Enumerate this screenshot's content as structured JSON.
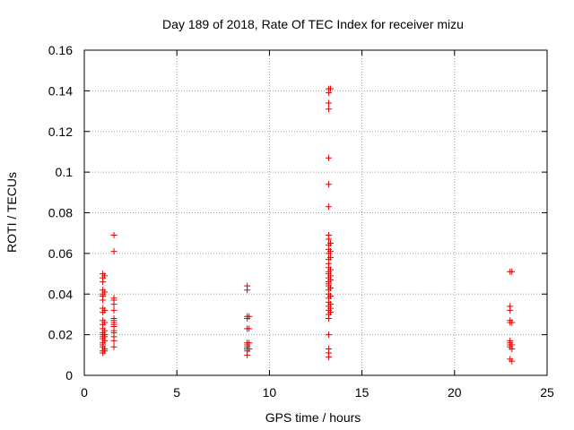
{
  "chart_data": {
    "type": "scatter",
    "title": "Day 189 of 2018, Rate Of TEC Index for receiver mizu",
    "xlabel": "GPS time / hours",
    "ylabel": "ROTI / TECUs",
    "xlim": [
      0,
      25
    ],
    "ylim": [
      0,
      0.16
    ],
    "xticks": [
      0,
      5,
      10,
      15,
      20,
      25
    ],
    "xtick_labels": [
      "0",
      "5",
      "10",
      "15",
      "20",
      "25"
    ],
    "yticks": [
      0,
      0.02,
      0.04,
      0.06,
      0.08,
      0.1,
      0.12,
      0.14,
      0.16
    ],
    "ytick_labels": [
      "0",
      "0.02",
      "0.04",
      "0.06",
      "0.08",
      "0.1",
      "0.12",
      "0.14",
      "0.16"
    ],
    "grid": true,
    "marker": "plus",
    "color": "#e00000",
    "points": [
      [
        1.0,
        0.05
      ],
      [
        1.0,
        0.048
      ],
      [
        1.0,
        0.046
      ],
      [
        1.0,
        0.042
      ],
      [
        1.0,
        0.04
      ],
      [
        1.0,
        0.039
      ],
      [
        1.0,
        0.037
      ],
      [
        1.0,
        0.033
      ],
      [
        1.0,
        0.031
      ],
      [
        1.0,
        0.027
      ],
      [
        1.0,
        0.025
      ],
      [
        1.0,
        0.023
      ],
      [
        1.0,
        0.021
      ],
      [
        1.0,
        0.02
      ],
      [
        1.0,
        0.019
      ],
      [
        1.0,
        0.018
      ],
      [
        1.0,
        0.016
      ],
      [
        1.0,
        0.015
      ],
      [
        1.0,
        0.014
      ],
      [
        1.0,
        0.012
      ],
      [
        1.0,
        0.011
      ],
      [
        1.1,
        0.049
      ],
      [
        1.1,
        0.041
      ],
      [
        1.1,
        0.032
      ],
      [
        1.1,
        0.026
      ],
      [
        1.1,
        0.022
      ],
      [
        1.1,
        0.02
      ],
      [
        1.1,
        0.019
      ],
      [
        1.1,
        0.017
      ],
      [
        1.1,
        0.013
      ],
      [
        1.1,
        0.012
      ],
      [
        1.6,
        0.069
      ],
      [
        1.6,
        0.061
      ],
      [
        1.6,
        0.038
      ],
      [
        1.6,
        0.037
      ],
      [
        1.6,
        0.035
      ],
      [
        1.6,
        0.032
      ],
      [
        1.6,
        0.028
      ],
      [
        1.6,
        0.027
      ],
      [
        1.6,
        0.026
      ],
      [
        1.6,
        0.025
      ],
      [
        1.6,
        0.024
      ],
      [
        1.6,
        0.022
      ],
      [
        1.6,
        0.021
      ],
      [
        1.6,
        0.019
      ],
      [
        1.6,
        0.017
      ],
      [
        1.6,
        0.014
      ],
      [
        8.8,
        0.044
      ],
      [
        8.8,
        0.042
      ],
      [
        8.8,
        0.029
      ],
      [
        8.8,
        0.028
      ],
      [
        8.8,
        0.023
      ],
      [
        8.8,
        0.016
      ],
      [
        8.8,
        0.015
      ],
      [
        8.8,
        0.014
      ],
      [
        8.8,
        0.013
      ],
      [
        8.8,
        0.012
      ],
      [
        8.8,
        0.01
      ],
      [
        8.9,
        0.029
      ],
      [
        8.9,
        0.023
      ],
      [
        8.9,
        0.016
      ],
      [
        8.9,
        0.013
      ],
      [
        13.2,
        0.141
      ],
      [
        13.2,
        0.139
      ],
      [
        13.2,
        0.134
      ],
      [
        13.2,
        0.131
      ],
      [
        13.2,
        0.107
      ],
      [
        13.2,
        0.094
      ],
      [
        13.2,
        0.083
      ],
      [
        13.2,
        0.069
      ],
      [
        13.2,
        0.067
      ],
      [
        13.2,
        0.064
      ],
      [
        13.2,
        0.062
      ],
      [
        13.2,
        0.06
      ],
      [
        13.2,
        0.057
      ],
      [
        13.2,
        0.055
      ],
      [
        13.2,
        0.053
      ],
      [
        13.2,
        0.051
      ],
      [
        13.2,
        0.05
      ],
      [
        13.2,
        0.048
      ],
      [
        13.2,
        0.046
      ],
      [
        13.2,
        0.045
      ],
      [
        13.2,
        0.044
      ],
      [
        13.2,
        0.042
      ],
      [
        13.2,
        0.04
      ],
      [
        13.2,
        0.038
      ],
      [
        13.2,
        0.036
      ],
      [
        13.2,
        0.034
      ],
      [
        13.2,
        0.032
      ],
      [
        13.2,
        0.03
      ],
      [
        13.2,
        0.028
      ],
      [
        13.2,
        0.02
      ],
      [
        13.2,
        0.013
      ],
      [
        13.2,
        0.011
      ],
      [
        13.2,
        0.009
      ],
      [
        13.3,
        0.141
      ],
      [
        13.3,
        0.065
      ],
      [
        13.3,
        0.061
      ],
      [
        13.3,
        0.058
      ],
      [
        13.3,
        0.052
      ],
      [
        13.3,
        0.049
      ],
      [
        13.3,
        0.047
      ],
      [
        13.3,
        0.043
      ],
      [
        13.3,
        0.039
      ],
      [
        13.3,
        0.035
      ],
      [
        13.3,
        0.033
      ],
      [
        13.3,
        0.031
      ],
      [
        23.0,
        0.051
      ],
      [
        23.0,
        0.034
      ],
      [
        23.0,
        0.032
      ],
      [
        23.0,
        0.027
      ],
      [
        23.0,
        0.026
      ],
      [
        23.0,
        0.017
      ],
      [
        23.0,
        0.016
      ],
      [
        23.0,
        0.015
      ],
      [
        23.0,
        0.014
      ],
      [
        23.0,
        0.008
      ],
      [
        23.1,
        0.051
      ],
      [
        23.1,
        0.026
      ],
      [
        23.1,
        0.015
      ],
      [
        23.1,
        0.013
      ],
      [
        23.1,
        0.007
      ]
    ]
  }
}
